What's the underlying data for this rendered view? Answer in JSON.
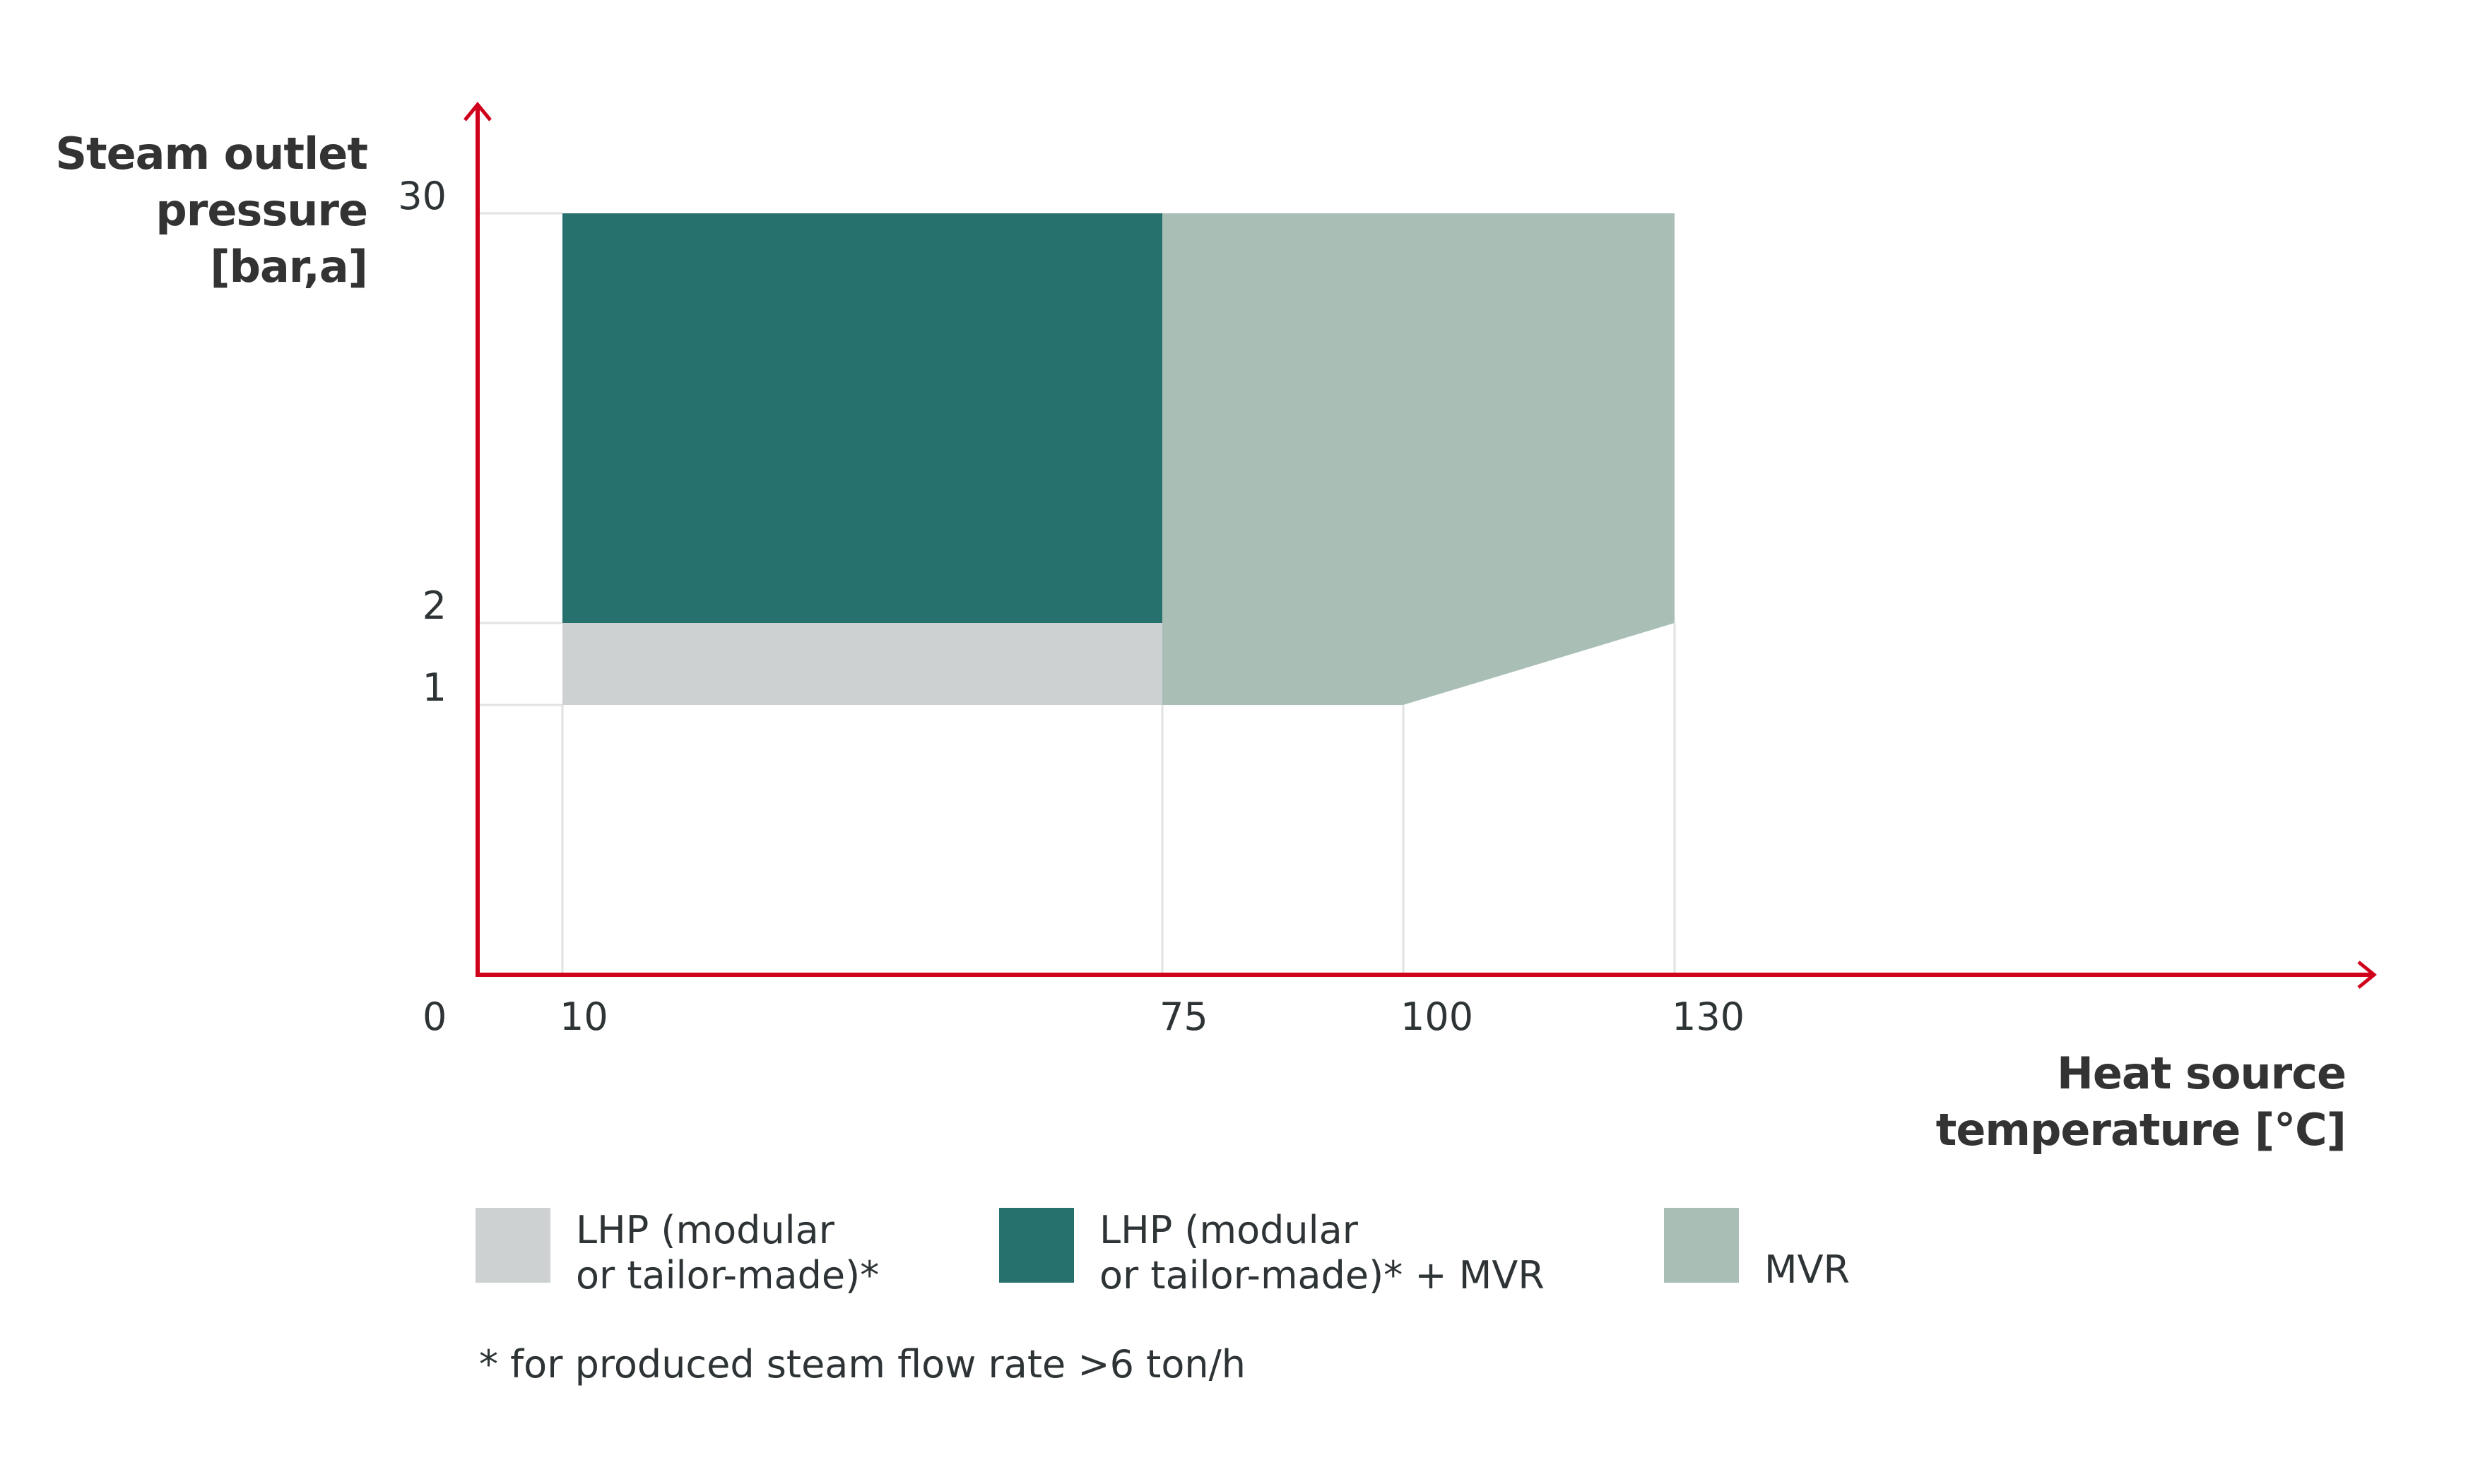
{
  "chart_data": {
    "type": "area",
    "title": "",
    "ylabel": "Steam outlet\npressure\n[bar,a]",
    "xlabel": "Heat source\ntemperature [°C]",
    "x_ticks": [
      "0",
      "10",
      "75",
      "100",
      "130"
    ],
    "x_tick_values": [
      0,
      10,
      75,
      100,
      130
    ],
    "y_ticks": [
      "1",
      "2",
      "30"
    ],
    "y_tick_values": [
      1,
      2,
      30
    ],
    "regions": [
      {
        "name": "LHP (modular or tailor-made)*",
        "color": "#cdd1d2",
        "points": [
          [
            10,
            1
          ],
          [
            75,
            1
          ],
          [
            75,
            2
          ],
          [
            10,
            2
          ]
        ]
      },
      {
        "name": "LHP (modular or tailor-made)* + MVR",
        "color": "#26706d",
        "points": [
          [
            10,
            2
          ],
          [
            75,
            2
          ],
          [
            75,
            30
          ],
          [
            10,
            30
          ]
        ]
      },
      {
        "name": "MVR",
        "color": "#a9bfb6",
        "points": [
          [
            75,
            1
          ],
          [
            100,
            1
          ],
          [
            130,
            2
          ],
          [
            130,
            30
          ],
          [
            75,
            30
          ]
        ]
      }
    ],
    "guides": {
      "vertical": [
        10,
        75,
        100,
        130
      ],
      "horizontal": [
        1,
        2,
        30
      ]
    },
    "axis_color": "#d0021b",
    "grid_color": "#e2e2e2",
    "legend_position": "bottom-left",
    "footnote": "* for produced steam flow rate >6 ton/h"
  },
  "legend": [
    {
      "label": "LHP (modular\nor tailor-made)*",
      "color": "#cdd1d2"
    },
    {
      "label": "LHP (modular\nor tailor-made)* + MVR",
      "color": "#26706d"
    },
    {
      "label": "MVR",
      "color": "#a9bfb6"
    }
  ]
}
